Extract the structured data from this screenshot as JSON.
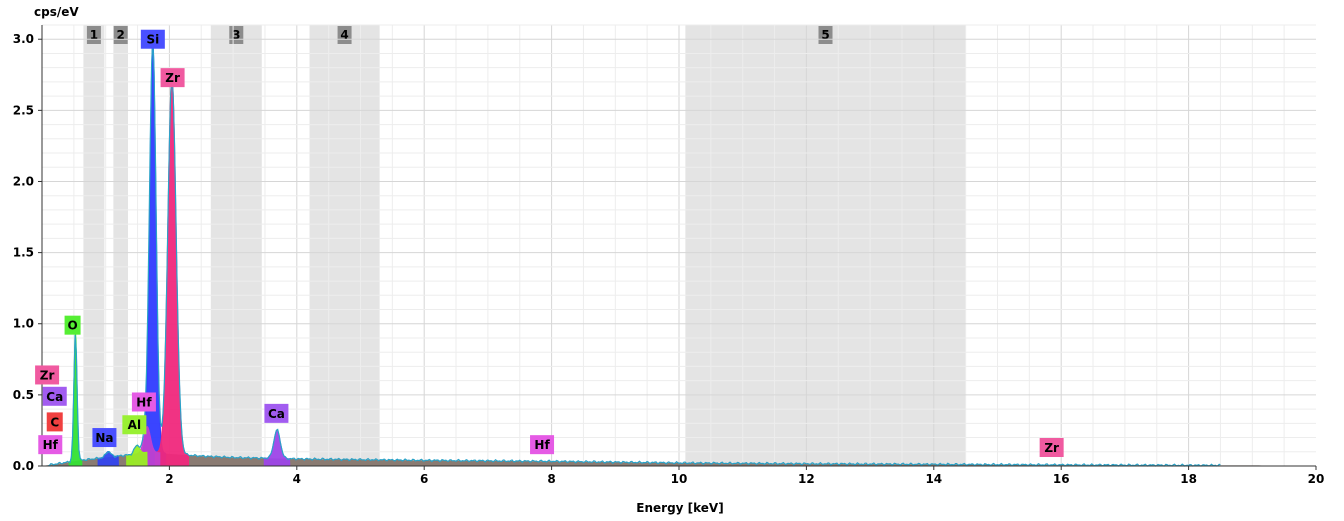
{
  "chart_data": {
    "type": "area",
    "ylabel": "cps/eV",
    "xlabel": "Energy [keV]",
    "xlim": [
      0,
      20
    ],
    "ylim": [
      0,
      3.1
    ],
    "x_ticks": [
      2,
      4,
      6,
      8,
      10,
      12,
      14,
      16,
      18,
      20
    ],
    "y_ticks": [
      0.0,
      0.5,
      1.0,
      1.5,
      2.0,
      2.5,
      3.0
    ],
    "y_tick_labels": [
      "0.0",
      "0.5",
      "1.0",
      "1.5",
      "2.0",
      "2.5",
      "3.0"
    ],
    "grid": true,
    "regions": [
      {
        "label": "1",
        "x0": 0.65,
        "x1": 0.98
      },
      {
        "label": "2",
        "x0": 1.12,
        "x1": 1.35
      },
      {
        "label": "3",
        "x0": 2.65,
        "x1": 3.45
      },
      {
        "label": "4",
        "x0": 4.2,
        "x1": 5.3
      },
      {
        "label": "5",
        "x0": 10.1,
        "x1": 14.5
      }
    ],
    "peaks": [
      {
        "element": "Si",
        "energy": 1.74,
        "height": 2.88,
        "width": 0.05,
        "color": "#2f3bff"
      },
      {
        "element": "Zr",
        "energy": 2.04,
        "height": 2.65,
        "width": 0.065,
        "color": "#f0287c"
      },
      {
        "element": "O",
        "energy": 0.525,
        "height": 0.9,
        "width": 0.025,
        "color": "#33e233"
      },
      {
        "element": "Ca",
        "energy": 3.69,
        "height": 0.2,
        "width": 0.05,
        "color": "#9d45e8"
      },
      {
        "element": "Hf",
        "energy": 1.65,
        "height": 0.18,
        "width": 0.05,
        "color": "#c040d0"
      },
      {
        "element": "Al",
        "energy": 1.49,
        "height": 0.06,
        "width": 0.04,
        "color": "#99ee22"
      },
      {
        "element": "Na",
        "energy": 1.04,
        "height": 0.04,
        "width": 0.04,
        "color": "#3344ee"
      }
    ],
    "background": [
      [
        0.0,
        0.0
      ],
      [
        0.3,
        0.02
      ],
      [
        0.6,
        0.04
      ],
      [
        1.0,
        0.06
      ],
      [
        1.4,
        0.08
      ],
      [
        1.7,
        0.1
      ],
      [
        2.0,
        0.085
      ],
      [
        2.5,
        0.07
      ],
      [
        3.0,
        0.06
      ],
      [
        4.0,
        0.05
      ],
      [
        5.0,
        0.045
      ],
      [
        6.0,
        0.04
      ],
      [
        8.0,
        0.033
      ],
      [
        10.0,
        0.022
      ],
      [
        12.0,
        0.016
      ],
      [
        14.0,
        0.012
      ],
      [
        16.0,
        0.008
      ],
      [
        18.0,
        0.005
      ],
      [
        20.0,
        0.003
      ]
    ],
    "element_labels": [
      {
        "text": "Si",
        "x": 1.74,
        "y": 3.0,
        "color": "#4a50ff"
      },
      {
        "text": "Zr",
        "x": 2.05,
        "y": 2.73,
        "color": "#f05aa0"
      },
      {
        "text": "O",
        "x": 0.48,
        "y": 0.99,
        "color": "#55ee33"
      },
      {
        "text": "Zr",
        "x": 0.08,
        "y": 0.64,
        "color": "#f05aa0"
      },
      {
        "text": "Ca",
        "x": 0.2,
        "y": 0.49,
        "color": "#a25cf0"
      },
      {
        "text": "C",
        "x": 0.2,
        "y": 0.31,
        "color": "#f04040"
      },
      {
        "text": "Hf",
        "x": 0.13,
        "y": 0.15,
        "color": "#e55be5"
      },
      {
        "text": "Na",
        "x": 0.98,
        "y": 0.2,
        "color": "#4a50ff"
      },
      {
        "text": "Al",
        "x": 1.45,
        "y": 0.29,
        "color": "#99f033"
      },
      {
        "text": "Hf",
        "x": 1.6,
        "y": 0.45,
        "color": "#e55be5"
      },
      {
        "text": "Ca",
        "x": 3.68,
        "y": 0.37,
        "color": "#a25cf0"
      },
      {
        "text": "Hf",
        "x": 7.85,
        "y": 0.15,
        "color": "#e55be5"
      },
      {
        "text": "Zr",
        "x": 15.85,
        "y": 0.13,
        "color": "#f05aa0"
      }
    ]
  }
}
